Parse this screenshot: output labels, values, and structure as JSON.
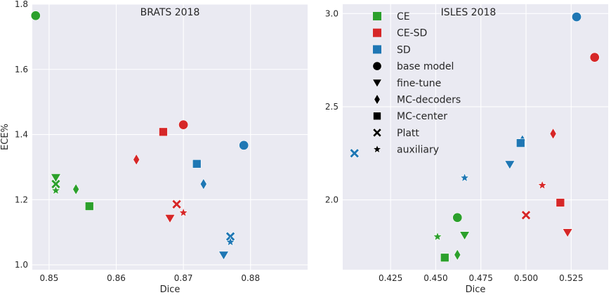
{
  "chart_data": [
    {
      "type": "scatter",
      "title": "BRATS 2018",
      "xlabel": "Dice",
      "ylabel": "ECE%",
      "xlim": [
        0.8475,
        0.8885
      ],
      "ylim": [
        0.985,
        1.8
      ],
      "xticks": [
        "0.85",
        "0.86",
        "0.87",
        "0.88"
      ],
      "yticks": [
        "1.0",
        "1.2",
        "1.4",
        "1.6",
        "1.8"
      ],
      "grid": true,
      "points": [
        {
          "method": "CE",
          "variant": "base model",
          "x": 0.848,
          "y": 1.765
        },
        {
          "method": "CE",
          "variant": "fine-tune",
          "x": 0.851,
          "y": 1.268
        },
        {
          "method": "CE",
          "variant": "Platt",
          "x": 0.851,
          "y": 1.248
        },
        {
          "method": "CE",
          "variant": "auxiliary",
          "x": 0.851,
          "y": 1.228
        },
        {
          "method": "CE",
          "variant": "MC-decoders",
          "x": 0.854,
          "y": 1.232
        },
        {
          "method": "CE",
          "variant": "MC-center",
          "x": 0.856,
          "y": 1.18
        },
        {
          "method": "CE-SD",
          "variant": "base model",
          "x": 0.87,
          "y": 1.43
        },
        {
          "method": "CE-SD",
          "variant": "MC-center",
          "x": 0.867,
          "y": 1.408
        },
        {
          "method": "CE-SD",
          "variant": "MC-decoders",
          "x": 0.863,
          "y": 1.323
        },
        {
          "method": "CE-SD",
          "variant": "Platt",
          "x": 0.869,
          "y": 1.186
        },
        {
          "method": "CE-SD",
          "variant": "auxiliary",
          "x": 0.87,
          "y": 1.16
        },
        {
          "method": "CE-SD",
          "variant": "fine-tune",
          "x": 0.868,
          "y": 1.143
        },
        {
          "method": "SD",
          "variant": "base model",
          "x": 0.879,
          "y": 1.367
        },
        {
          "method": "SD",
          "variant": "MC-center",
          "x": 0.872,
          "y": 1.31
        },
        {
          "method": "SD",
          "variant": "MC-decoders",
          "x": 0.873,
          "y": 1.248
        },
        {
          "method": "SD",
          "variant": "Platt",
          "x": 0.877,
          "y": 1.087
        },
        {
          "method": "SD",
          "variant": "auxiliary",
          "x": 0.877,
          "y": 1.07
        },
        {
          "method": "SD",
          "variant": "fine-tune",
          "x": 0.876,
          "y": 1.03
        }
      ]
    },
    {
      "type": "scatter",
      "title": "ISLES 2018",
      "xlabel": "Dice",
      "ylabel": "",
      "xlim": [
        0.3985,
        0.5455
      ],
      "ylim": [
        1.625,
        3.05
      ],
      "xticks": [
        "0.425",
        "0.450",
        "0.475",
        "0.500",
        "0.525"
      ],
      "yticks": [
        "2.0",
        "2.5",
        "3.0"
      ],
      "grid": true,
      "points": [
        {
          "method": "CE",
          "variant": "base model",
          "x": 0.462,
          "y": 1.905
        },
        {
          "method": "CE",
          "variant": "auxiliary",
          "x": 0.451,
          "y": 1.802
        },
        {
          "method": "CE",
          "variant": "fine-tune",
          "x": 0.466,
          "y": 1.81
        },
        {
          "method": "CE",
          "variant": "MC-decoders",
          "x": 0.462,
          "y": 1.705
        },
        {
          "method": "CE",
          "variant": "MC-center",
          "x": 0.455,
          "y": 1.69
        },
        {
          "method": "CE-SD",
          "variant": "base model",
          "x": 0.538,
          "y": 2.765
        },
        {
          "method": "CE-SD",
          "variant": "MC-decoders",
          "x": 0.515,
          "y": 2.355
        },
        {
          "method": "CE-SD",
          "variant": "auxiliary",
          "x": 0.509,
          "y": 2.078
        },
        {
          "method": "CE-SD",
          "variant": "MC-center",
          "x": 0.519,
          "y": 1.985
        },
        {
          "method": "CE-SD",
          "variant": "Platt",
          "x": 0.5,
          "y": 1.918
        },
        {
          "method": "CE-SD",
          "variant": "fine-tune",
          "x": 0.523,
          "y": 1.825
        },
        {
          "method": "SD",
          "variant": "base model",
          "x": 0.528,
          "y": 2.982
        },
        {
          "method": "SD",
          "variant": "MC-decoders",
          "x": 0.498,
          "y": 2.32
        },
        {
          "method": "SD",
          "variant": "MC-center",
          "x": 0.497,
          "y": 2.305
        },
        {
          "method": "SD",
          "variant": "Platt",
          "x": 0.405,
          "y": 2.25
        },
        {
          "method": "SD",
          "variant": "fine-tune",
          "x": 0.491,
          "y": 2.19
        },
        {
          "method": "SD",
          "variant": "auxiliary",
          "x": 0.466,
          "y": 2.118
        }
      ]
    }
  ],
  "legend": {
    "placement": "upper-left of ISLES 2018 panel",
    "colors": [
      {
        "label": "CE",
        "color": "#2ca02c"
      },
      {
        "label": "CE-SD",
        "color": "#d62728"
      },
      {
        "label": "SD",
        "color": "#1f77b4"
      }
    ],
    "markers": [
      {
        "label": "base model",
        "marker": "circle"
      },
      {
        "label": "fine-tune",
        "marker": "triangle-down"
      },
      {
        "label": "MC-decoders",
        "marker": "thin-diamond"
      },
      {
        "label": "MC-center",
        "marker": "square"
      },
      {
        "label": "Platt",
        "marker": "x-filled"
      },
      {
        "label": "auxiliary",
        "marker": "star"
      }
    ]
  },
  "style": {
    "panel_background": "#eaeaf2",
    "grid_color": "#ffffff",
    "legend_marker_color": "#000000"
  }
}
